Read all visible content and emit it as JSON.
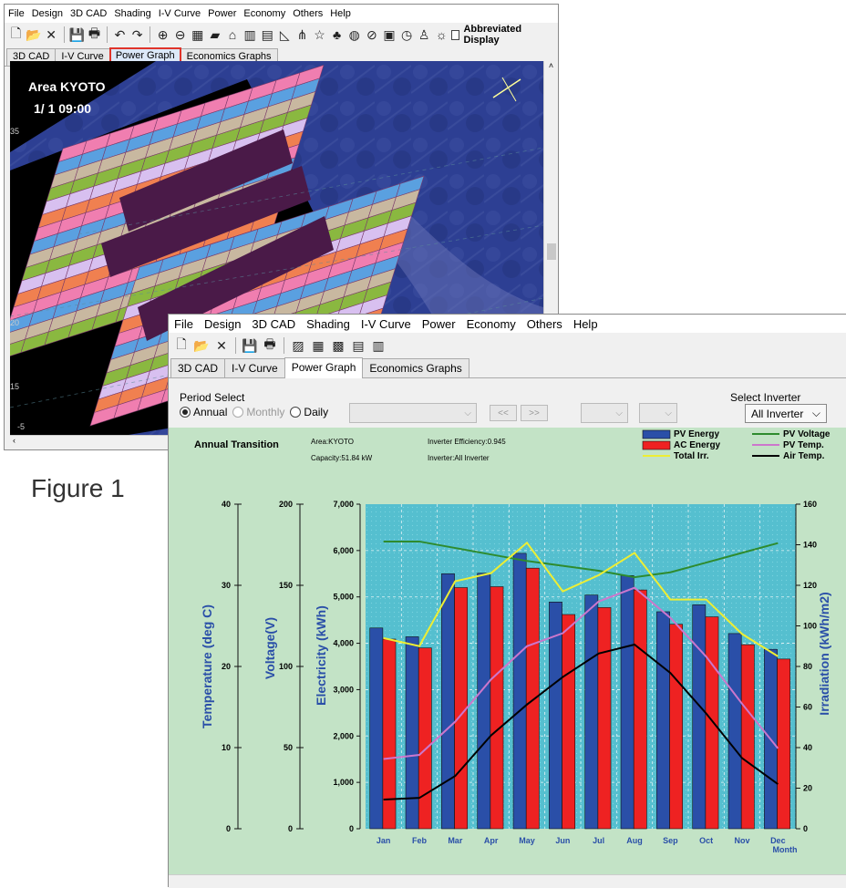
{
  "w1": {
    "menu": [
      "File",
      "Design",
      "3D CAD",
      "Shading",
      "I-V Curve",
      "Power",
      "Economy",
      "Others",
      "Help"
    ],
    "abbreviated_label": "Abbreviated Display",
    "tabs": [
      "3D CAD",
      "I-V Curve",
      "Power Graph",
      "Economics Graphs"
    ],
    "area_label": "Area KYOTO",
    "time_label": "1/ 1 09:00",
    "side_ticks": [
      "35",
      "20",
      "15",
      "-5"
    ]
  },
  "figure_caption": "Figure 1",
  "w2": {
    "menu": [
      "File",
      "Design",
      "3D CAD",
      "Shading",
      "I-V Curve",
      "Power",
      "Economy",
      "Others",
      "Help"
    ],
    "tabs": [
      "3D CAD",
      "I-V Curve",
      "Power Graph",
      "Economics Graphs"
    ],
    "period_select_label": "Period Select",
    "radio_annual": "Annual",
    "radio_monthly": "Monthly",
    "radio_daily": "Daily",
    "prev_btn": "<<",
    "next_btn": ">>",
    "select_inverter_label": "Select Inverter",
    "inverter_value": "All Inverter"
  },
  "chart_data": {
    "type": "bar",
    "title": "Annual Transition",
    "info": {
      "area": "Area:KYOTO",
      "capacity": "Capacity:51.84 kW",
      "efficiency": "Inverter Efficiency:0.945",
      "inverter": "Inverter:All Inverter"
    },
    "categories": [
      "Jan",
      "Feb",
      "Mar",
      "Apr",
      "May",
      "Jun",
      "Jul",
      "Aug",
      "Sep",
      "Oct",
      "Nov",
      "Dec"
    ],
    "xlabel": "Month",
    "bar_series": [
      {
        "name": "PV Energy",
        "color": "#2a4fa8",
        "values": [
          4330,
          4140,
          5500,
          5510,
          5940,
          4890,
          5040,
          5460,
          4680,
          4830,
          4210,
          3870
        ]
      },
      {
        "name": "AC Energy",
        "color": "#ee2222",
        "values": [
          4090,
          3900,
          5200,
          5220,
          5620,
          4620,
          4770,
          5150,
          4410,
          4570,
          3970,
          3660
        ]
      }
    ],
    "line_series": [
      {
        "name": "PV Voltage",
        "color": "#2e8b2e",
        "axis": "voltage",
        "values": [
          177,
          177,
          173,
          169,
          165,
          162,
          159,
          155,
          158,
          164,
          170,
          176
        ]
      },
      {
        "name": "PV Temp.",
        "color": "#cc77cc",
        "axis": "temperature",
        "values": [
          8.6,
          9.1,
          13.2,
          18.4,
          22.5,
          24.1,
          28,
          29.7,
          26,
          21.2,
          15.4,
          9.9
        ]
      },
      {
        "name": "Total Irr.",
        "color": "#eeee33",
        "axis": "irradiation",
        "values": [
          94,
          90,
          122,
          126,
          141,
          117,
          125,
          136,
          113,
          113,
          96,
          85
        ]
      },
      {
        "name": "Air Temp.",
        "color": "#000000",
        "axis": "temperature",
        "values": [
          3.6,
          3.8,
          6.5,
          11.5,
          15.3,
          18.7,
          21.6,
          22.7,
          19.2,
          14.2,
          8.7,
          5.5
        ]
      }
    ],
    "axes": {
      "temperature": {
        "label": "Temperature (deg C)",
        "range": [
          0,
          40
        ],
        "ticks": [
          "0",
          "10",
          "20",
          "30",
          "40"
        ]
      },
      "voltage": {
        "label": "Voltage(V)",
        "range": [
          0,
          200
        ],
        "ticks": [
          "0",
          "50",
          "100",
          "150",
          "200"
        ]
      },
      "electricity": {
        "label": "Electricity (kWh)",
        "range": [
          0,
          7000
        ],
        "ticks": [
          "0",
          "1,000",
          "2,000",
          "3,000",
          "4,000",
          "5,000",
          "6,000",
          "7,000"
        ]
      },
      "irradiation": {
        "label": "Irradiation (kWh/m2)",
        "range": [
          0,
          160
        ],
        "ticks": [
          "0",
          "20",
          "40",
          "60",
          "80",
          "100",
          "120",
          "140",
          "160"
        ]
      }
    },
    "grid": true,
    "legend_position": "top-right"
  }
}
